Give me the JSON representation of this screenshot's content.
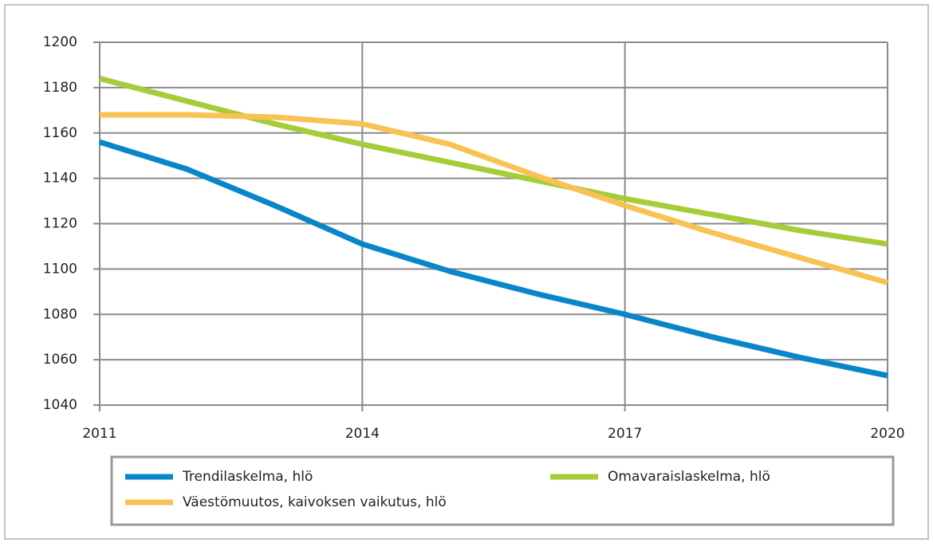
{
  "chart_data": {
    "type": "line",
    "x": [
      2011,
      2012,
      2013,
      2014,
      2015,
      2016,
      2017,
      2018,
      2019,
      2020
    ],
    "series": [
      {
        "name": "Trendilaskelma, hlö",
        "color": "#0a86c8",
        "values": [
          1156,
          1144,
          1128,
          1111,
          1099,
          1089,
          1080,
          1070,
          1061,
          1053
        ]
      },
      {
        "name": "Omavaraislaskelma, hlö",
        "color": "#a6cc3a",
        "values": [
          1184,
          1174,
          1164,
          1155,
          1147,
          1139,
          1131,
          1124,
          1117,
          1111
        ]
      },
      {
        "name": "Väestömuutos, kaivoksen vaikutus, hlö",
        "color": "#f9c255",
        "values": [
          1168,
          1168,
          1167,
          1164,
          1155,
          1141,
          1128,
          1116,
          1105,
          1094
        ]
      }
    ],
    "xlim": [
      2011,
      2020
    ],
    "xticks": [
      2011,
      2014,
      2017,
      2020
    ],
    "ylim": [
      1040,
      1200
    ],
    "yticks": [
      1040,
      1060,
      1080,
      1100,
      1120,
      1140,
      1160,
      1180,
      1200
    ],
    "grid": true
  }
}
